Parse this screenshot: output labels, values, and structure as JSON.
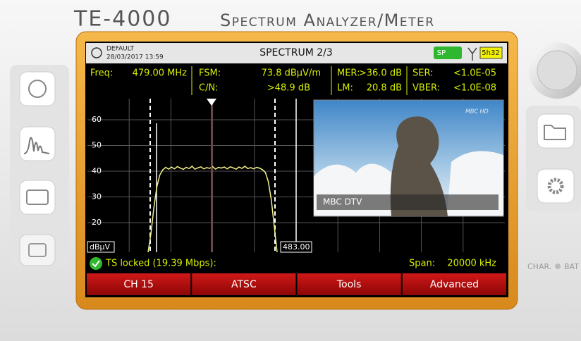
{
  "header": {
    "model": "TE-4000",
    "product": "Spectrum Analyzer/Meter"
  },
  "status": {
    "profile": "DEFAULT",
    "datetime": "28/03/2017 13:59",
    "screen": "SPECTRUM 2/3",
    "badge": "SP",
    "battery": "5h32"
  },
  "measurements": [
    {
      "label": "Freq:",
      "value": "479.00 MHz"
    },
    {
      "label": "FSM:",
      "value": "73.8 dBµV/m"
    },
    {
      "label": "MER:",
      "value": ">36.0 dB"
    },
    {
      "label": "SER:",
      "value": "<1.0E-05"
    },
    {
      "label": "C/N:",
      "value": ">48.9 dB"
    },
    {
      "label": "LM:",
      "value": "20.8 dB"
    },
    {
      "label": "VBER:",
      "value": "<1.0E-08"
    }
  ],
  "spectrum": {
    "unit": "dBµV",
    "ylim": [
      8.5,
      68.2
    ],
    "yticks": [
      20,
      30,
      40,
      50,
      60
    ],
    "marker_label": "483.00",
    "trace": [
      8.5,
      16,
      26,
      34,
      38.5,
      40.5,
      41.5,
      40.8,
      41.6,
      40.9,
      41.8,
      41.2,
      40.7,
      41.5,
      41,
      41.9,
      40.8,
      41.3,
      41.7,
      40.9,
      41.4,
      41.1,
      41.8,
      40.8,
      41.5,
      41.2,
      41.6,
      40.9,
      41.7,
      41.3,
      40.8,
      41.6,
      41.1,
      41.9,
      41,
      41.4,
      40.9,
      41.5,
      41.2,
      40.6,
      39.5,
      36,
      29,
      19,
      8.5
    ]
  },
  "video": {
    "channel_name": "MBC DTV",
    "logo": "MBC HD"
  },
  "footer": {
    "lock": "TS locked (19.39 Mbps):",
    "span_label": "Span:",
    "span": "20000 kHz"
  },
  "softkeys": [
    "CH 15",
    "ATSC",
    "Tools",
    "Advanced"
  ],
  "side_labels": [
    "CHAR.",
    "BAT"
  ]
}
